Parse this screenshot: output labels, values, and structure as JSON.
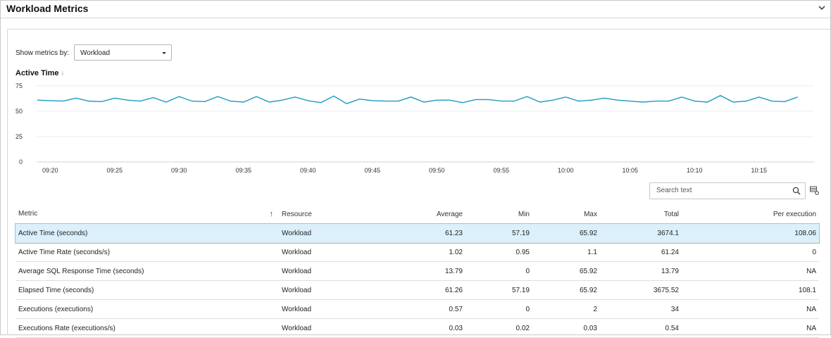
{
  "panel": {
    "title": "Workload Metrics"
  },
  "controls": {
    "show_metrics_label": "Show metrics by:",
    "show_metrics_value": "Workload"
  },
  "chart_data": {
    "type": "line",
    "title": "Active Time",
    "yticks": [
      0,
      25,
      50,
      75
    ],
    "ylim": [
      0,
      75
    ],
    "xticks": [
      "09:20",
      "09:25",
      "09:30",
      "09:35",
      "09:40",
      "09:45",
      "09:50",
      "09:55",
      "10:00",
      "10:05",
      "10:10",
      "10:15"
    ],
    "x_start": "09:19",
    "x_step_minutes": 1,
    "grid": true,
    "color": "#1a9bc1",
    "series": [
      {
        "values": [
          61,
          60.5,
          60,
          63,
          60,
          59.5,
          63,
          61,
          60,
          63.5,
          59,
          64.5,
          60,
          59.5,
          64.5,
          60,
          59,
          64.5,
          59,
          61,
          64,
          60.5,
          58.5,
          65,
          57.5,
          62,
          60.5,
          60,
          60,
          64,
          59,
          61,
          61,
          58.5,
          61.5,
          61.5,
          60,
          60,
          64.5,
          59,
          61,
          64,
          60,
          61,
          63,
          61,
          60,
          59,
          60,
          60,
          64,
          60,
          59,
          65.5,
          59,
          60,
          64,
          60,
          59.5,
          64
        ]
      }
    ]
  },
  "search": {
    "placeholder": "Search text"
  },
  "table": {
    "headers": {
      "metric": "Metric",
      "resource": "Resource",
      "average": "Average",
      "min": "Min",
      "max": "Max",
      "total": "Total",
      "per_execution": "Per execution"
    },
    "rows": [
      {
        "metric": "Active Time (seconds)",
        "resource": "Workload",
        "average": "61.23",
        "min": "57.19",
        "max": "65.92",
        "total": "3674.1",
        "per_execution": "108.06"
      },
      {
        "metric": "Active Time Rate (seconds/s)",
        "resource": "Workload",
        "average": "1.02",
        "min": "0.95",
        "max": "1.1",
        "total": "61.24",
        "per_execution": "0"
      },
      {
        "metric": "Average SQL Response Time (seconds)",
        "resource": "Workload",
        "average": "13.79",
        "min": "0",
        "max": "65.92",
        "total": "13.79",
        "per_execution": "NA"
      },
      {
        "metric": "Elapsed Time (seconds)",
        "resource": "Workload",
        "average": "61.26",
        "min": "57.19",
        "max": "65.92",
        "total": "3675.52",
        "per_execution": "108.1"
      },
      {
        "metric": "Executions (executions)",
        "resource": "Workload",
        "average": "0.57",
        "min": "0",
        "max": "2",
        "total": "34",
        "per_execution": "NA"
      },
      {
        "metric": "Executions Rate (executions/s)",
        "resource": "Workload",
        "average": "0.03",
        "min": "0.02",
        "max": "0.03",
        "total": "0.54",
        "per_execution": "NA"
      }
    ]
  }
}
